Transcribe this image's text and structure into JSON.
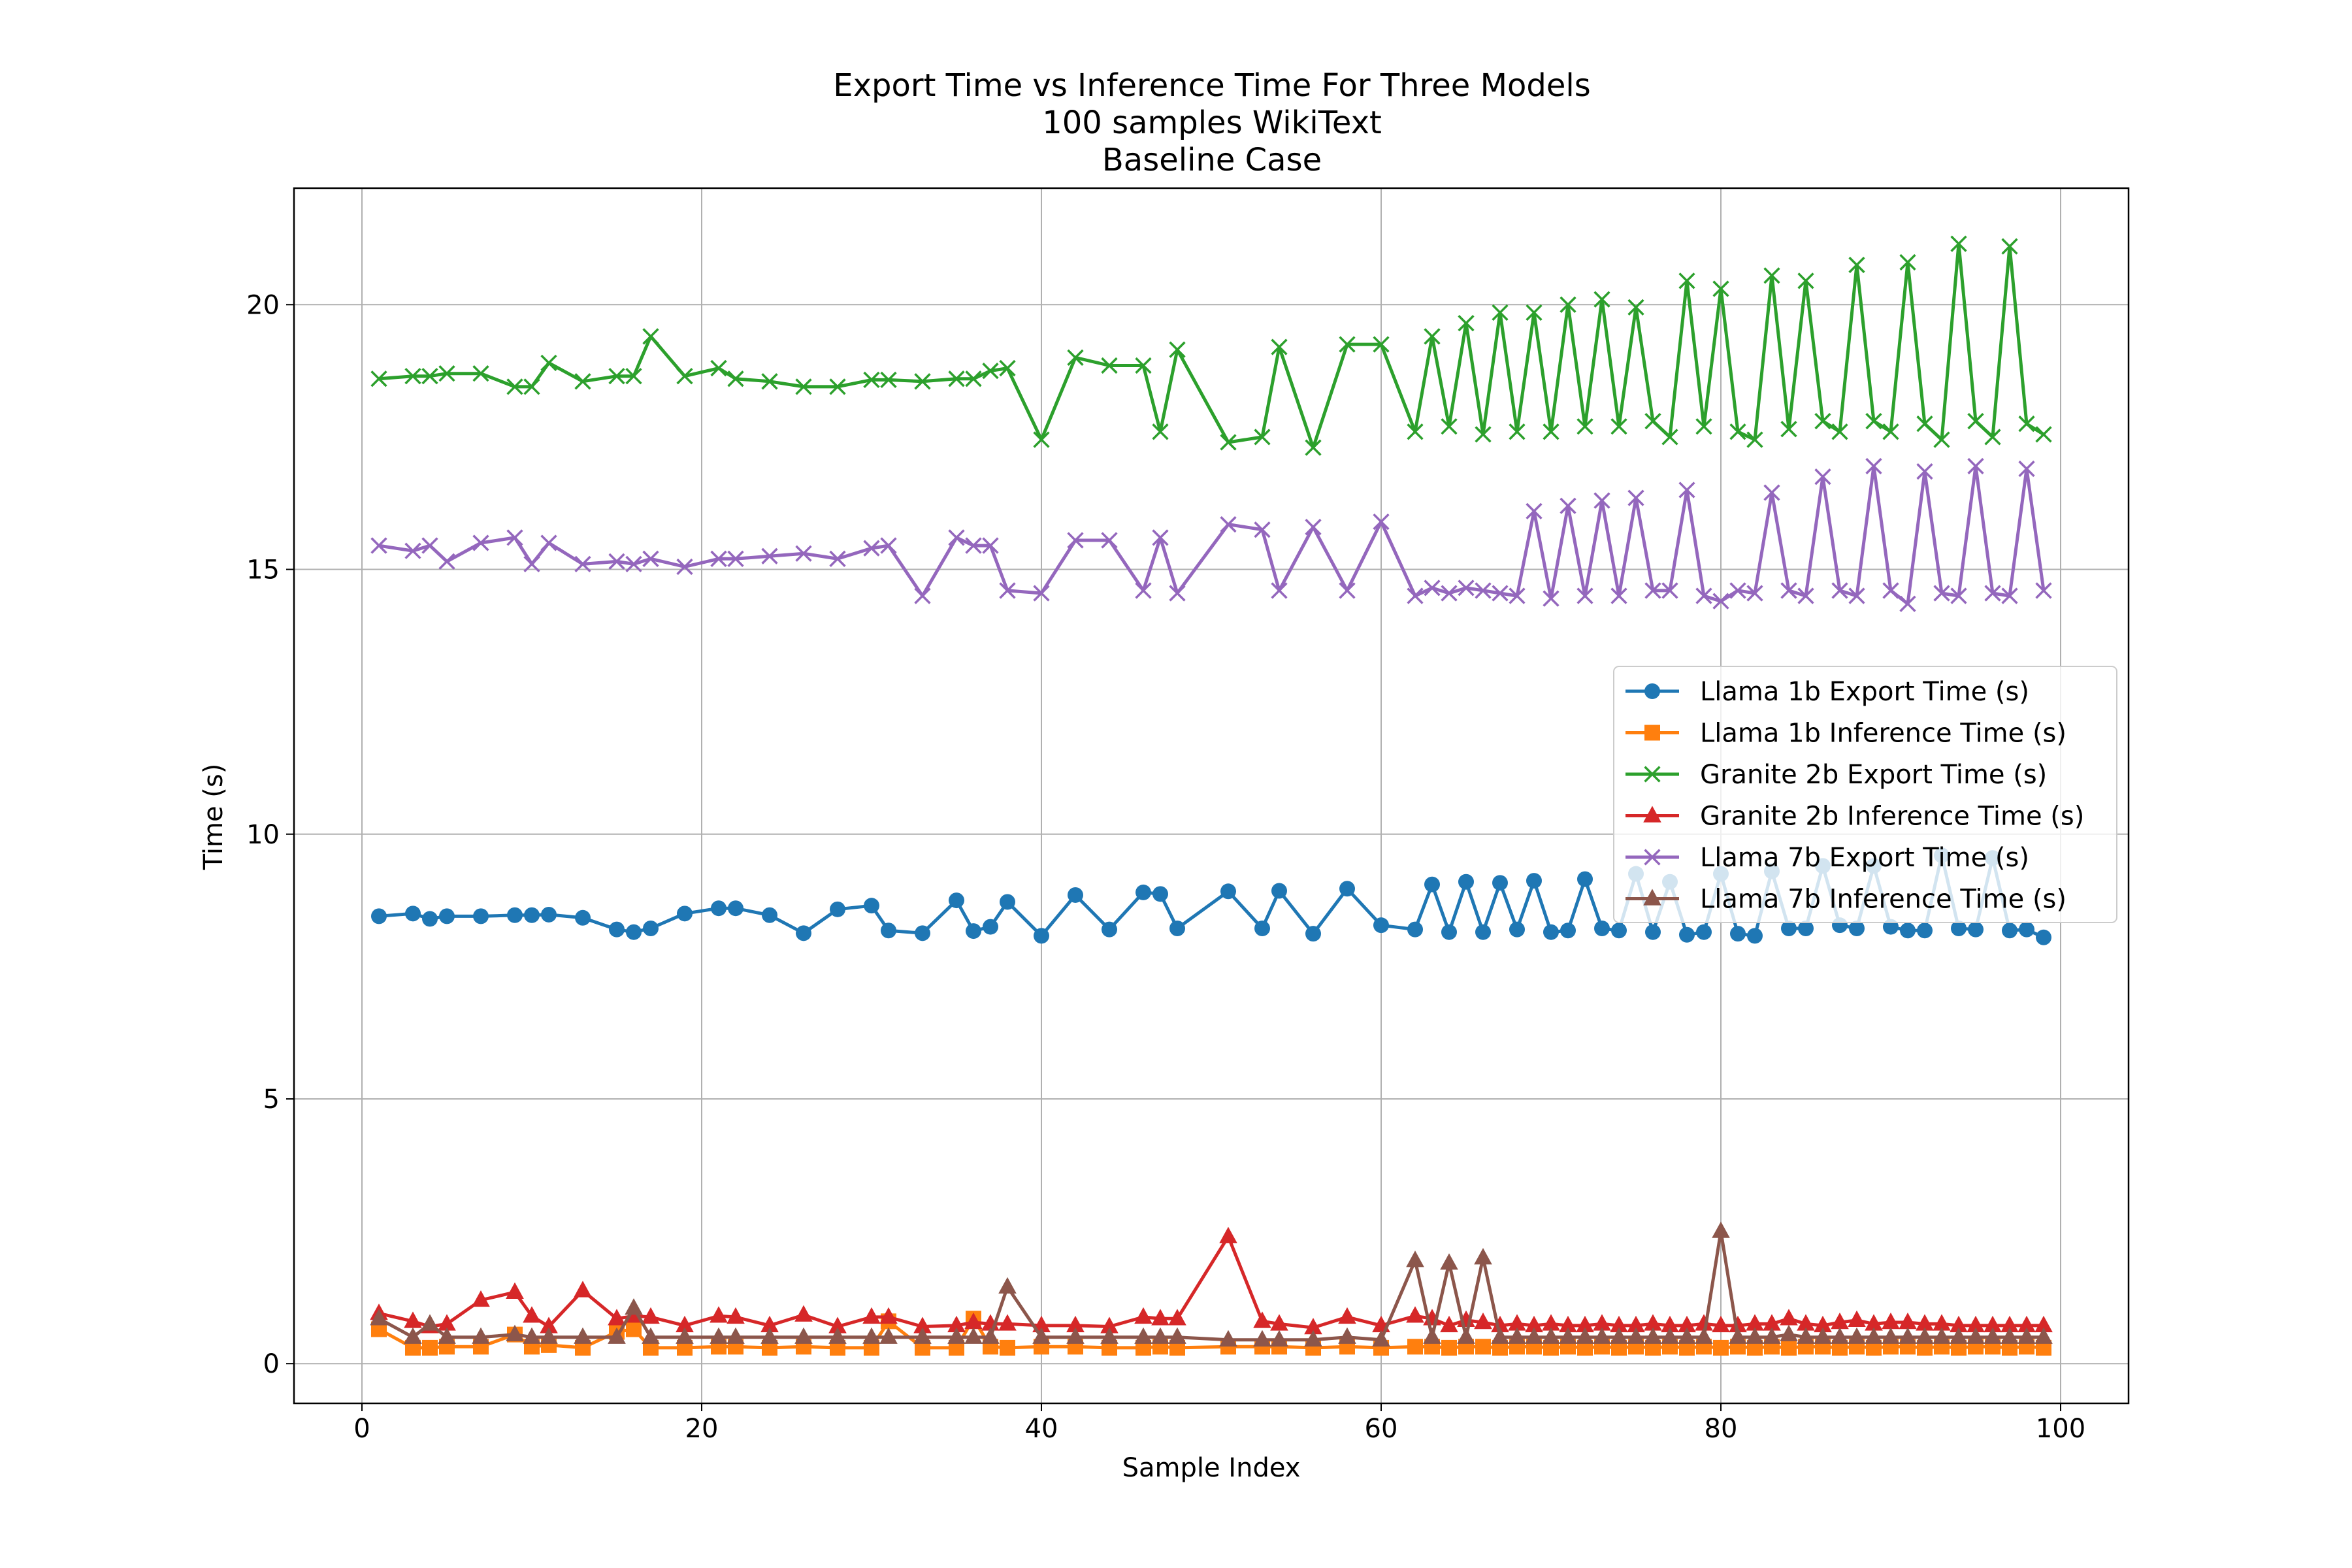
{
  "chart_data": {
    "type": "line",
    "title_lines": [
      "Export Time vs Inference Time For Three Models",
      "100 samples WikiText",
      "Baseline Case"
    ],
    "xlabel": "Sample Index",
    "ylabel": "Time (s)",
    "xlim": [
      -4,
      104
    ],
    "ylim": [
      -0.75,
      22.2
    ],
    "xticks": [
      0,
      20,
      40,
      60,
      80,
      100
    ],
    "yticks": [
      0,
      5,
      10,
      15,
      20
    ],
    "grid": true,
    "legend_position": "center-right",
    "x": [
      1,
      3,
      4,
      5,
      7,
      9,
      10,
      11,
      13,
      15,
      16,
      17,
      19,
      21,
      22,
      24,
      26,
      28,
      30,
      31,
      33,
      35,
      36,
      37,
      38,
      40,
      42,
      44,
      46,
      47,
      48,
      51,
      53,
      54,
      56,
      58,
      60,
      62,
      63,
      64,
      65,
      66,
      67,
      68,
      69,
      70,
      71,
      72,
      73,
      74,
      75,
      76,
      77,
      78,
      79,
      80,
      81,
      82,
      83,
      84,
      85,
      86,
      87,
      88,
      89,
      90,
      91,
      92,
      93,
      94,
      95,
      96,
      97,
      98,
      99
    ],
    "series": [
      {
        "name": "Llama 1b Export Time (s)",
        "color": "#1f77b4",
        "marker": "circle",
        "values": [
          8.45,
          8.5,
          8.4,
          8.45,
          8.45,
          8.47,
          8.47,
          8.48,
          8.42,
          8.2,
          8.15,
          8.22,
          8.5,
          8.6,
          8.6,
          8.47,
          8.13,
          8.58,
          8.65,
          8.18,
          8.13,
          8.75,
          8.17,
          8.25,
          8.72,
          8.08,
          8.85,
          8.2,
          8.9,
          8.87,
          8.22,
          8.92,
          8.22,
          8.93,
          8.12,
          8.97,
          8.28,
          8.2,
          9.05,
          8.15,
          9.1,
          8.15,
          9.08,
          8.2,
          9.12,
          8.15,
          8.18,
          9.15,
          8.22,
          8.18,
          9.25,
          8.15,
          9.1,
          8.1,
          8.15,
          9.25,
          8.12,
          8.08,
          9.3,
          8.22,
          8.22,
          9.4,
          8.28,
          8.22,
          9.4,
          8.25,
          8.18,
          8.18,
          9.6,
          8.22,
          8.2,
          9.55,
          8.18,
          8.2,
          8.05
        ]
      },
      {
        "name": "Llama 1b Inference Time (s)",
        "color": "#ff7f0e",
        "marker": "square",
        "values": [
          0.65,
          0.3,
          0.3,
          0.32,
          0.32,
          0.55,
          0.32,
          0.35,
          0.3,
          0.6,
          0.65,
          0.3,
          0.3,
          0.32,
          0.32,
          0.3,
          0.32,
          0.3,
          0.3,
          0.8,
          0.3,
          0.3,
          0.85,
          0.32,
          0.3,
          0.32,
          0.32,
          0.3,
          0.3,
          0.32,
          0.3,
          0.32,
          0.32,
          0.32,
          0.3,
          0.32,
          0.3,
          0.32,
          0.32,
          0.3,
          0.32,
          0.32,
          0.3,
          0.32,
          0.32,
          0.3,
          0.32,
          0.3,
          0.32,
          0.3,
          0.32,
          0.3,
          0.32,
          0.3,
          0.32,
          0.3,
          0.32,
          0.3,
          0.32,
          0.3,
          0.32,
          0.32,
          0.3,
          0.32,
          0.3,
          0.32,
          0.32,
          0.3,
          0.32,
          0.3,
          0.32,
          0.32,
          0.3,
          0.32,
          0.3
        ]
      },
      {
        "name": "Granite 2b Export Time (s)",
        "color": "#2ca02c",
        "marker": "x",
        "values": [
          18.6,
          18.65,
          18.65,
          18.7,
          18.7,
          18.45,
          18.45,
          18.9,
          18.55,
          18.65,
          18.65,
          19.4,
          18.65,
          18.8,
          18.6,
          18.55,
          18.45,
          18.45,
          18.58,
          18.58,
          18.55,
          18.6,
          18.6,
          18.75,
          18.8,
          17.45,
          19.0,
          18.85,
          18.85,
          17.6,
          19.15,
          17.4,
          17.5,
          19.2,
          17.3,
          19.25,
          19.25,
          17.6,
          19.4,
          17.7,
          19.65,
          17.55,
          19.85,
          17.6,
          19.85,
          17.6,
          20.0,
          17.7,
          20.1,
          17.7,
          19.95,
          17.8,
          17.5,
          20.45,
          17.7,
          20.3,
          17.6,
          17.45,
          20.55,
          17.65,
          20.45,
          17.8,
          17.6,
          20.75,
          17.8,
          17.6,
          20.8,
          17.75,
          17.45,
          21.15,
          17.8,
          17.5,
          21.1,
          17.75,
          17.55
        ]
      },
      {
        "name": "Granite 2b Inference Time (s)",
        "color": "#d62728",
        "marker": "triangle",
        "values": [
          0.95,
          0.8,
          0.7,
          0.75,
          1.2,
          1.35,
          0.9,
          0.7,
          1.38,
          0.85,
          0.9,
          0.88,
          0.72,
          0.9,
          0.88,
          0.72,
          0.92,
          0.7,
          0.88,
          0.88,
          0.7,
          0.72,
          0.78,
          0.75,
          0.75,
          0.72,
          0.72,
          0.7,
          0.88,
          0.85,
          0.85,
          2.4,
          0.8,
          0.75,
          0.68,
          0.88,
          0.72,
          0.9,
          0.85,
          0.72,
          0.82,
          0.78,
          0.72,
          0.75,
          0.72,
          0.75,
          0.72,
          0.72,
          0.75,
          0.72,
          0.72,
          0.75,
          0.72,
          0.72,
          0.75,
          0.72,
          0.72,
          0.75,
          0.75,
          0.85,
          0.75,
          0.72,
          0.78,
          0.82,
          0.75,
          0.78,
          0.78,
          0.75,
          0.75,
          0.72,
          0.72,
          0.72,
          0.72,
          0.72,
          0.72
        ]
      },
      {
        "name": "Llama 7b Export Time (s)",
        "color": "#9467bd",
        "marker": "x",
        "values": [
          15.45,
          15.35,
          15.45,
          15.15,
          15.5,
          15.6,
          15.1,
          15.5,
          15.1,
          15.15,
          15.1,
          15.2,
          15.05,
          15.2,
          15.2,
          15.25,
          15.3,
          15.2,
          15.4,
          15.45,
          14.5,
          15.6,
          15.45,
          15.45,
          14.6,
          14.55,
          15.55,
          15.55,
          14.6,
          15.6,
          14.55,
          15.85,
          15.75,
          14.6,
          15.8,
          14.6,
          15.9,
          14.5,
          14.65,
          14.55,
          14.65,
          14.6,
          14.55,
          14.5,
          16.1,
          14.45,
          16.2,
          14.5,
          16.3,
          14.5,
          16.35,
          14.6,
          14.6,
          16.5,
          14.5,
          14.4,
          14.6,
          14.55,
          16.45,
          14.6,
          14.5,
          16.75,
          14.6,
          14.5,
          16.95,
          14.6,
          14.35,
          16.85,
          14.55,
          14.5,
          16.95,
          14.55,
          14.5,
          16.9,
          14.6
        ]
      },
      {
        "name": "Llama 7b Inference Time (s)",
        "color": "#8c564b",
        "marker": "triangle",
        "values": [
          0.85,
          0.5,
          0.75,
          0.5,
          0.5,
          0.55,
          0.5,
          0.5,
          0.5,
          0.5,
          1.05,
          0.5,
          0.5,
          0.5,
          0.5,
          0.5,
          0.5,
          0.5,
          0.5,
          0.5,
          0.5,
          0.5,
          0.5,
          0.5,
          1.45,
          0.5,
          0.5,
          0.5,
          0.5,
          0.5,
          0.5,
          0.45,
          0.45,
          0.45,
          0.45,
          0.5,
          0.45,
          1.95,
          0.5,
          1.9,
          0.5,
          2.0,
          0.5,
          0.5,
          0.5,
          0.5,
          0.5,
          0.5,
          0.5,
          0.5,
          0.5,
          0.5,
          0.5,
          0.5,
          0.5,
          2.5,
          0.5,
          0.5,
          0.5,
          0.55,
          0.5,
          0.5,
          0.5,
          0.5,
          0.5,
          0.5,
          0.5,
          0.5,
          0.5,
          0.5,
          0.5,
          0.5,
          0.5,
          0.5,
          0.5
        ]
      }
    ]
  }
}
